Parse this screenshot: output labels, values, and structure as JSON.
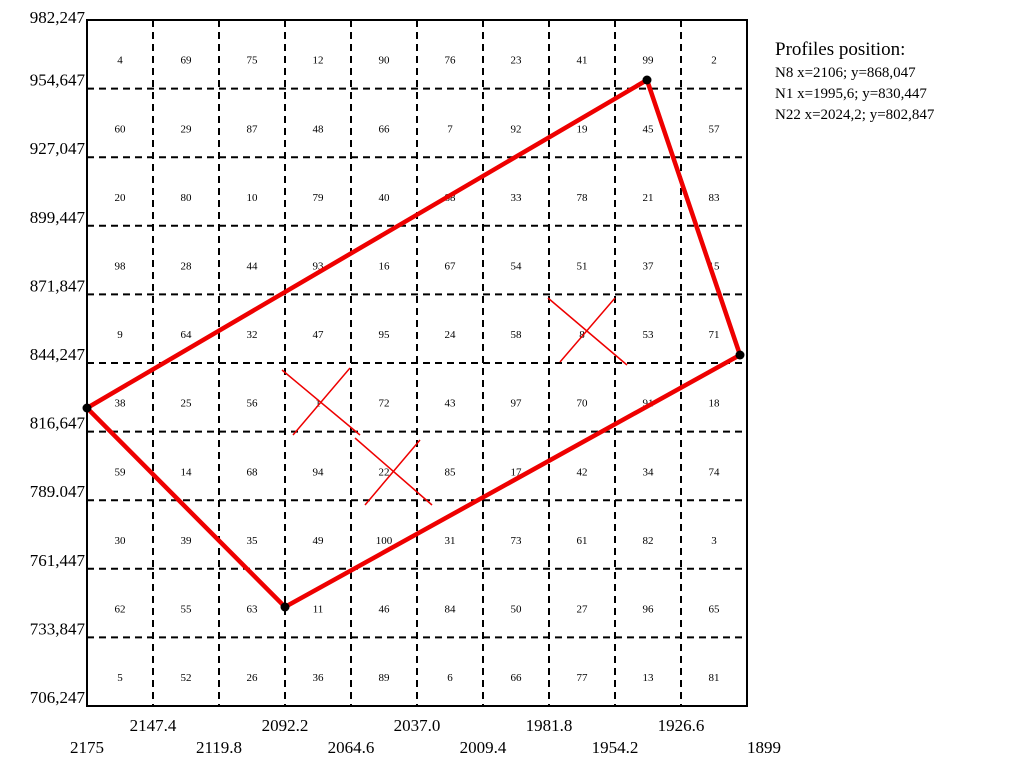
{
  "grid": {
    "rows": [
      [
        4,
        69,
        75,
        12,
        90,
        76,
        23,
        41,
        99,
        2
      ],
      [
        60,
        29,
        87,
        48,
        66,
        7,
        92,
        19,
        45,
        57
      ],
      [
        20,
        80,
        10,
        79,
        40,
        88,
        33,
        78,
        21,
        83
      ],
      [
        98,
        28,
        44,
        93,
        16,
        67,
        54,
        51,
        37,
        15
      ],
      [
        9,
        64,
        32,
        47,
        95,
        24,
        58,
        8,
        53,
        71
      ],
      [
        38,
        25,
        56,
        1,
        72,
        43,
        97,
        70,
        91,
        18
      ],
      [
        59,
        14,
        68,
        94,
        22,
        85,
        17,
        42,
        34,
        74
      ],
      [
        30,
        39,
        35,
        49,
        100,
        31,
        73,
        61,
        82,
        3
      ],
      [
        62,
        55,
        63,
        11,
        46,
        84,
        50,
        27,
        96,
        65
      ],
      [
        5,
        52,
        26,
        36,
        89,
        6,
        66,
        77,
        13,
        81
      ]
    ],
    "y_labels": [
      "982,247",
      "954,647",
      "927,047",
      "899,447",
      "871,847",
      "844,247",
      "816,647",
      "789.047",
      "761,447",
      "733,847",
      "706,247"
    ],
    "x_labels": [
      "2175",
      "2147.4",
      "2119.8",
      "2092.2",
      "2064.6",
      "2037.0",
      "2009.4",
      "1981.8",
      "1954.2",
      "1926.6",
      "1899"
    ]
  },
  "legend": {
    "title": "Profiles position:",
    "lines": [
      "N8  x=2106; y=868,047",
      "N1  x=1995,6; y=830,447",
      "N22  x=2024,2; y=802,847"
    ]
  }
}
